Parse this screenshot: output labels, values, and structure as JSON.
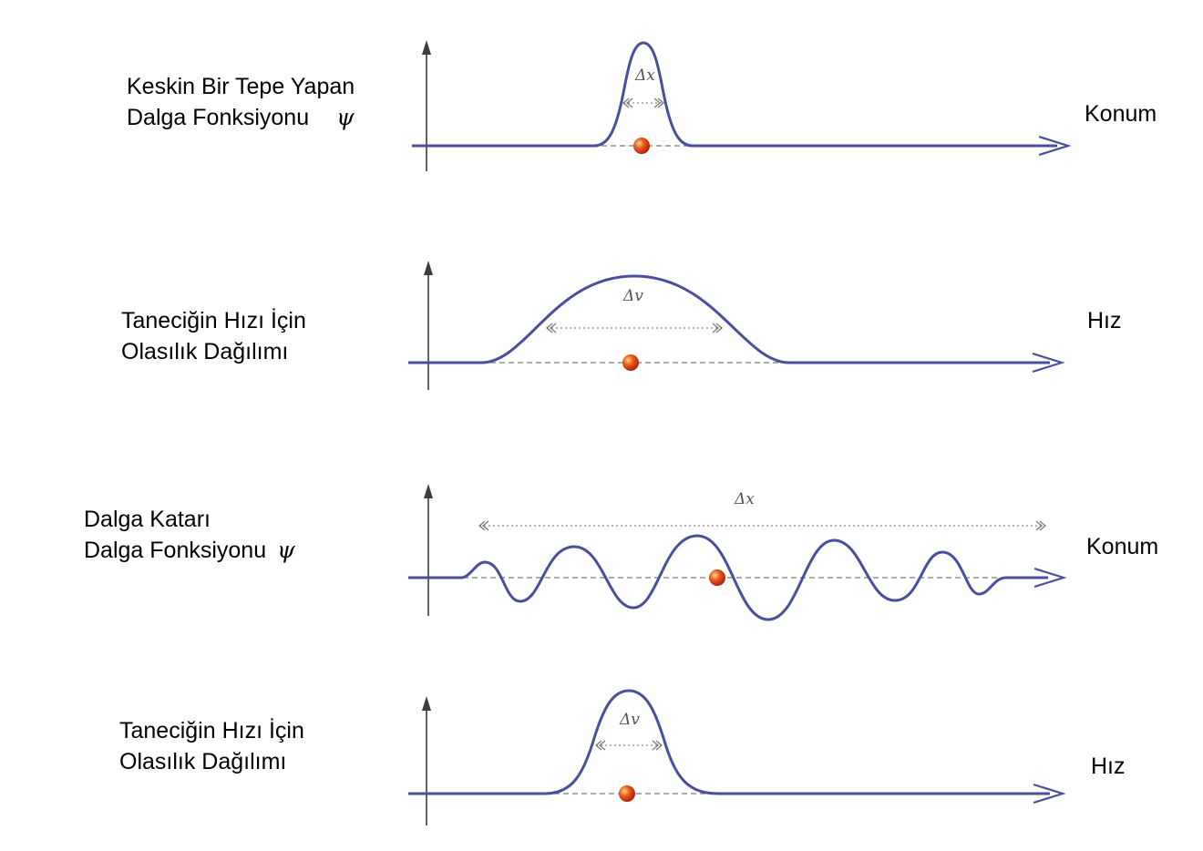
{
  "panels": [
    {
      "label_line1": "Keskin Bir Tepe Yapan",
      "label_line2": "Dalga Fonksiyonu",
      "symbol": "ψ",
      "axis_label": "Konum",
      "width_label": "Δx",
      "curve": "narrow-peak"
    },
    {
      "label_line1": "Taneciğin Hızı İçin",
      "label_line2": "Olasılık Dağılımı",
      "symbol": "",
      "axis_label": "Hız",
      "width_label": "Δv",
      "curve": "wide-peak"
    },
    {
      "label_line1": "Dalga Katarı",
      "label_line2": "Dalga Fonksiyonu",
      "symbol": "ψ",
      "axis_label": "Konum",
      "width_label": "Δx",
      "curve": "wave-train"
    },
    {
      "label_line1": "Taneciğin Hızı İçin",
      "label_line2": "Olasılık Dağılımı",
      "symbol": "",
      "axis_label": "Hız",
      "width_label": "Δv",
      "curve": "narrow-peak"
    }
  ],
  "colors": {
    "curve": "#4a4f9c",
    "axis": "#3d3d3d",
    "baseline_dashed": "#7a7a7a",
    "particle": "#d9401a"
  }
}
